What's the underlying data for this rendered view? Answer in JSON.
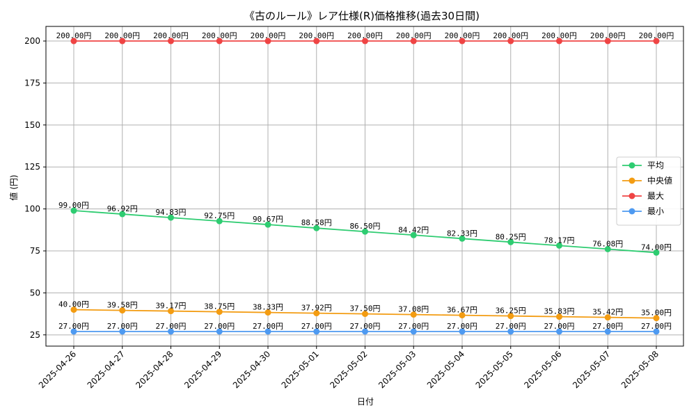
{
  "chart_data": {
    "type": "line",
    "title": "《古のルール》レア仕様(R)価格推移(過去30日間)",
    "xlabel": "日付",
    "ylabel": "値 (円)",
    "ylim": [
      18.3,
      208.7
    ],
    "yticks": [
      25,
      50,
      75,
      100,
      125,
      150,
      175,
      200
    ],
    "grid": true,
    "legend_position": "center-right",
    "label_suffix": "円",
    "categories": [
      "2025-04-26",
      "2025-04-27",
      "2025-04-28",
      "2025-04-29",
      "2025-04-30",
      "2025-05-01",
      "2025-05-02",
      "2025-05-03",
      "2025-05-04",
      "2025-05-05",
      "2025-05-06",
      "2025-05-07",
      "2025-05-08"
    ],
    "series": [
      {
        "name": "平均",
        "color": "#2ecc71",
        "values": [
          99.0,
          96.92,
          94.83,
          92.75,
          90.67,
          88.58,
          86.5,
          84.42,
          82.33,
          80.25,
          78.17,
          76.08,
          74.0
        ]
      },
      {
        "name": "中央値",
        "color": "#f39c12",
        "values": [
          40.0,
          39.58,
          39.17,
          38.75,
          38.33,
          37.92,
          37.5,
          37.08,
          36.67,
          36.25,
          35.83,
          35.42,
          35.0
        ]
      },
      {
        "name": "最大",
        "color": "#ef4444",
        "values": [
          200.0,
          200.0,
          200.0,
          200.0,
          200.0,
          200.0,
          200.0,
          200.0,
          200.0,
          200.0,
          200.0,
          200.0,
          200.0
        ]
      },
      {
        "name": "最小",
        "color": "#4e9af1",
        "values": [
          27.0,
          27.0,
          27.0,
          27.0,
          27.0,
          27.0,
          27.0,
          27.0,
          27.0,
          27.0,
          27.0,
          27.0,
          27.0
        ]
      }
    ]
  }
}
